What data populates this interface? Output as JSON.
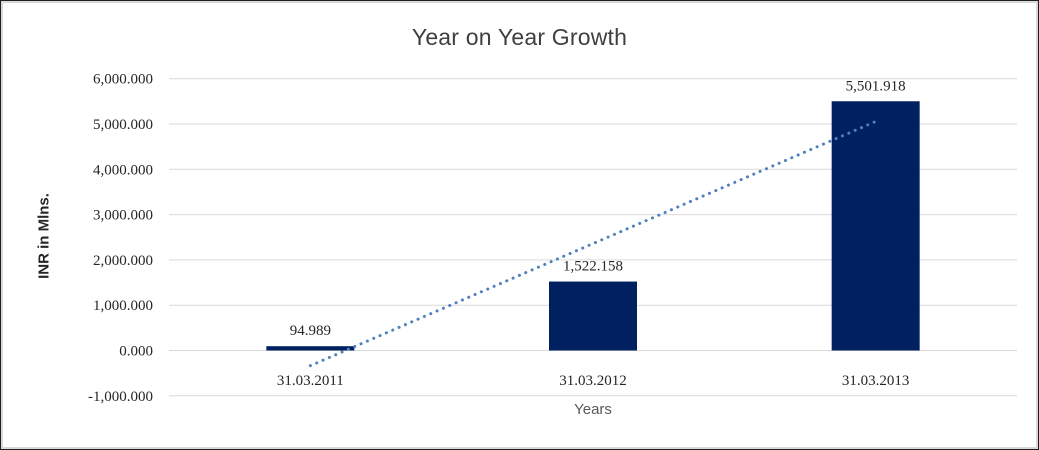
{
  "chart_data": {
    "type": "bar",
    "title": "Year on Year Growth",
    "xlabel": "Years",
    "ylabel": "INR in Mlns.",
    "categories": [
      "31.03.2011",
      "31.03.2012",
      "31.03.2013"
    ],
    "series": [
      {
        "name": "INR in Mlns.",
        "values": [
          94.989,
          1522.158,
          5501.918
        ],
        "data_labels": [
          "94.989",
          "1,522.158",
          "5,501.918"
        ]
      }
    ],
    "y_ticks": [
      {
        "value": 6000,
        "label": "6,000.000"
      },
      {
        "value": 5000,
        "label": "5,000.000"
      },
      {
        "value": 4000,
        "label": "4,000.000"
      },
      {
        "value": 3000,
        "label": "3,000.000"
      },
      {
        "value": 2000,
        "label": "2,000.000"
      },
      {
        "value": 1000,
        "label": "1,000.000"
      },
      {
        "value": 0,
        "label": "0.000"
      },
      {
        "value": -1000,
        "label": "-1,000.000"
      }
    ],
    "ylim": [
      -1000,
      6000
    ],
    "grid": true,
    "legend": "none",
    "trendline": {
      "type": "linear",
      "style": "dotted",
      "color": "#4e81bd",
      "endpoint_categories": [
        0,
        2
      ],
      "endpoint_values": [
        -335,
        5055
      ]
    },
    "colors": {
      "bar": "#002060",
      "gridline": "#d9d9d9",
      "axis_text": "#262626",
      "title_text": "#3f3f3f",
      "data_label_text": "#262626"
    }
  }
}
